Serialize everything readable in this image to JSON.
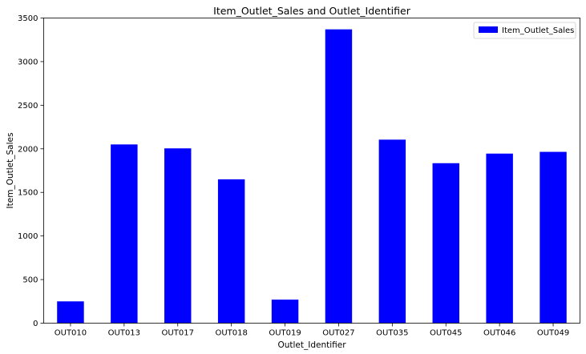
{
  "chart_data": {
    "type": "bar",
    "title": "Item_Outlet_Sales and Outlet_Identifier",
    "xlabel": "Outlet_Identifier",
    "ylabel": "Item_Outlet_Sales",
    "categories": [
      "OUT010",
      "OUT013",
      "OUT017",
      "OUT018",
      "OUT019",
      "OUT027",
      "OUT035",
      "OUT045",
      "OUT046",
      "OUT049"
    ],
    "series": [
      {
        "name": "Item_Outlet_Sales",
        "color": "#0000ff",
        "values": [
          250,
          2050,
          2005,
          1650,
          270,
          3370,
          2105,
          1835,
          1945,
          1965
        ]
      }
    ],
    "ylim": [
      0,
      3500
    ],
    "yticks": [
      0,
      500,
      1000,
      1500,
      2000,
      2500,
      3000,
      3500
    ],
    "grid": false,
    "legend_position": "top-right"
  }
}
